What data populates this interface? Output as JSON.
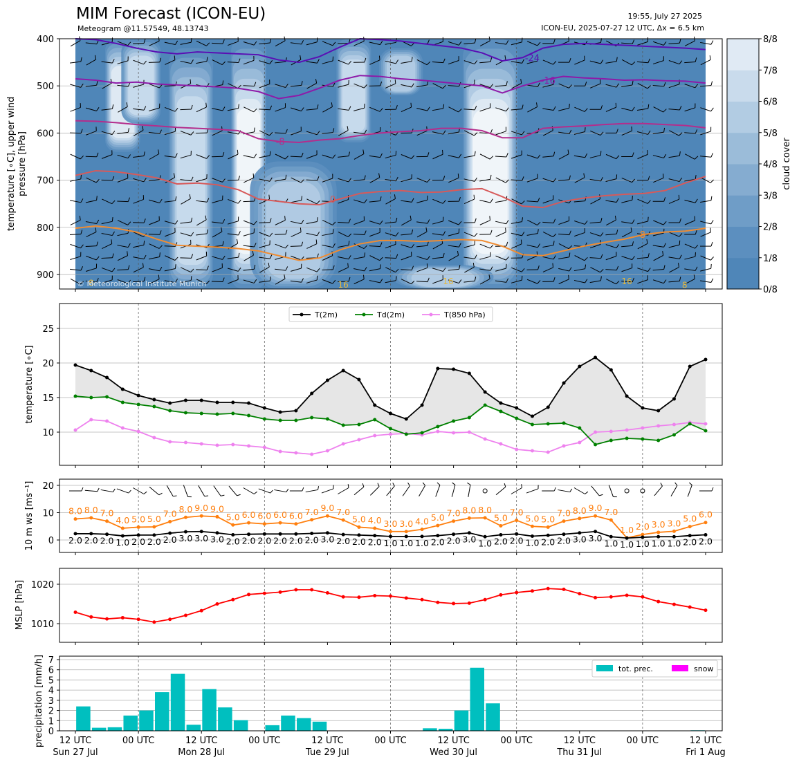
{
  "header": {
    "title": "MIM Forecast (ICON-EU)",
    "subtitle": "Meteogram @11.57549, 48.13743",
    "time": "19:55, July 27 2025",
    "run": "ICON-EU, 2025-07-27 12 UTC, Δx = 6.5 km"
  },
  "colors": {
    "t2m": "#000000",
    "td2m": "#008000",
    "t850": "#ee82ee",
    "ws": "#ff7f0e",
    "mslp": "#ff0000",
    "prec": "#00bfbf",
    "snow": "#ff00ff",
    "cloud_low": "#4f86b8",
    "cloud_high": "#f2f6fa"
  },
  "time_axis": {
    "ticks": [
      {
        "h": 0,
        "top": "12 UTC",
        "bottom": "Sun 27 Jul"
      },
      {
        "h": 12,
        "top": "00 UTC",
        "bottom": ""
      },
      {
        "h": 24,
        "top": "12 UTC",
        "bottom": "Mon 28 Jul"
      },
      {
        "h": 36,
        "top": "00 UTC",
        "bottom": ""
      },
      {
        "h": 48,
        "top": "12 UTC",
        "bottom": "Tue 29 Jul"
      },
      {
        "h": 60,
        "top": "00 UTC",
        "bottom": ""
      },
      {
        "h": 72,
        "top": "12 UTC",
        "bottom": "Wed 30 Jul"
      },
      {
        "h": 84,
        "top": "00 UTC",
        "bottom": ""
      },
      {
        "h": 96,
        "top": "12 UTC",
        "bottom": "Thu 31 Jul"
      },
      {
        "h": 108,
        "top": "00 UTC",
        "bottom": ""
      },
      {
        "h": 120,
        "top": "12 UTC",
        "bottom": "Fri 1 Aug"
      }
    ]
  },
  "chart_data": [
    {
      "type": "heatmap",
      "ylabel": "temperature [∘C], upper wind\npressure [hPa]",
      "y_ticks": [
        400,
        500,
        600,
        700,
        800,
        900
      ],
      "colorbar_label": "cloud cover",
      "colorbar_ticks": [
        "0/8",
        "1/8",
        "2/8",
        "3/8",
        "4/8",
        "5/8",
        "6/8",
        "7/8",
        "8/8"
      ],
      "cloud_columns": [
        {
          "h_from": 6,
          "h_to": 12,
          "top": 400,
          "bottom": 640,
          "level": 7
        },
        {
          "h_from": 9,
          "h_to": 16,
          "top": 400,
          "bottom": 580,
          "level": 6
        },
        {
          "h_from": 18,
          "h_to": 26,
          "top": 420,
          "bottom": 935,
          "level": 6
        },
        {
          "h_from": 30,
          "h_to": 36,
          "top": 400,
          "bottom": 935,
          "level": 8
        },
        {
          "h_from": 33,
          "h_to": 50,
          "top": 660,
          "bottom": 935,
          "level": 5
        },
        {
          "h_from": 50,
          "h_to": 56,
          "top": 400,
          "bottom": 620,
          "level": 6
        },
        {
          "h_from": 58,
          "h_to": 66,
          "top": 420,
          "bottom": 520,
          "level": 5
        },
        {
          "h_from": 74,
          "h_to": 84,
          "top": 400,
          "bottom": 935,
          "level": 8
        },
        {
          "h_from": 60,
          "h_to": 80,
          "top": 880,
          "bottom": 935,
          "level": 5
        }
      ],
      "isotherms": [
        {
          "label": "-24",
          "color": "#5a0fb4",
          "label_h": 87,
          "values": [
            400,
            402,
            410,
            420,
            428,
            432,
            428,
            430,
            432,
            434,
            445,
            450,
            438,
            418,
            400,
            402,
            405,
            410,
            415,
            420,
            430,
            447,
            440,
            420,
            412,
            410,
            412,
            414,
            416,
            418,
            420,
            423
          ]
        },
        {
          "label": "-16",
          "color": "#8e1aa8",
          "label_h": 90,
          "values": [
            485,
            488,
            494,
            492,
            496,
            498,
            500,
            502,
            505,
            512,
            527,
            520,
            505,
            488,
            478,
            480,
            485,
            488,
            492,
            496,
            500,
            515,
            500,
            488,
            480,
            483,
            485,
            488,
            487,
            489,
            490,
            494
          ]
        },
        {
          "label": "-8",
          "color": "#b42d8c",
          "label_h": 39,
          "values": [
            574,
            575,
            578,
            582,
            585,
            588,
            590,
            592,
            595,
            612,
            618,
            620,
            615,
            612,
            605,
            600,
            597,
            595,
            590,
            590,
            595,
            610,
            610,
            590,
            587,
            585,
            582,
            580,
            580,
            582,
            584,
            589
          ]
        },
        {
          "label": "0",
          "color": "#d75a5a",
          "label_h": 49,
          "values": [
            690,
            680,
            682,
            688,
            695,
            708,
            706,
            710,
            720,
            740,
            745,
            750,
            752,
            740,
            728,
            724,
            722,
            726,
            725,
            720,
            718,
            735,
            755,
            758,
            745,
            738,
            733,
            730,
            728,
            722,
            706,
            692
          ]
        },
        {
          "label": "8",
          "color": "#f08c32",
          "label_h": 108,
          "values": [
            802,
            797,
            802,
            810,
            825,
            838,
            840,
            842,
            845,
            850,
            860,
            870,
            865,
            848,
            835,
            828,
            828,
            830,
            828,
            826,
            828,
            840,
            858,
            860,
            850,
            840,
            832,
            825,
            815,
            810,
            808,
            802
          ]
        }
      ],
      "contour_labels": [
        {
          "text": "8",
          "h": 3,
          "p": 918,
          "color": "#e8b93a"
        },
        {
          "text": "16",
          "h": 51,
          "p": 922,
          "color": "#e8b93a"
        },
        {
          "text": "16",
          "h": 71,
          "p": 915,
          "color": "#e8b93a"
        },
        {
          "text": "16",
          "h": 105,
          "p": 915,
          "color": "#e8b93a"
        },
        {
          "text": "8",
          "h": 116,
          "p": 923,
          "color": "#e8b93a"
        }
      ],
      "watermark": "© Meteorological Institute Munich"
    },
    {
      "type": "line",
      "ylabel": "temperature [∘C]",
      "ylim": [
        5,
        28.5
      ],
      "y_ticks": [
        10,
        15,
        20,
        25
      ],
      "hours": [
        0,
        3,
        6,
        9,
        12,
        15,
        18,
        21,
        24,
        27,
        30,
        33,
        36,
        39,
        42,
        45,
        48,
        51,
        54,
        57,
        60,
        63,
        66,
        69,
        72,
        75,
        78,
        81,
        84,
        87,
        90,
        93,
        96,
        99,
        102,
        105,
        108,
        111,
        114,
        117,
        120
      ],
      "series": [
        {
          "name": "T(2m)",
          "color": "#000000",
          "values": [
            19.7,
            18.9,
            17.9,
            16.2,
            15.3,
            14.7,
            14.2,
            14.6,
            14.6,
            14.3,
            14.3,
            14.2,
            13.5,
            12.9,
            13.1,
            15.6,
            17.5,
            18.9,
            17.6,
            13.9,
            12.7,
            11.9,
            13.9,
            19.2,
            19.1,
            18.5,
            15.8,
            14.2,
            13.5,
            12.3,
            13.6,
            17.1,
            19.5,
            20.8,
            19.0,
            15.2,
            13.5,
            13.1,
            14.8,
            19.5,
            20.5
          ]
        },
        {
          "name": "Td(2m)",
          "color": "#008000",
          "values": [
            15.2,
            15.0,
            15.1,
            14.3,
            14.0,
            13.7,
            13.1,
            12.8,
            12.7,
            12.6,
            12.7,
            12.4,
            11.9,
            11.7,
            11.7,
            12.1,
            11.9,
            11.0,
            11.1,
            11.8,
            10.5,
            9.7,
            9.9,
            10.8,
            11.6,
            12.1,
            13.9,
            13.0,
            12.0,
            11.1,
            11.2,
            11.3,
            10.6,
            8.2,
            8.8,
            9.1,
            9.0,
            8.8,
            9.6,
            11.2,
            10.2
          ]
        },
        {
          "name": "T(850 hPa)",
          "color": "#ee82ee",
          "values": [
            10.3,
            11.8,
            11.6,
            10.6,
            10.1,
            9.2,
            8.6,
            8.5,
            8.3,
            8.1,
            8.2,
            8.0,
            7.8,
            7.2,
            7.0,
            6.8,
            7.3,
            8.3,
            8.9,
            9.5,
            9.7,
            9.8,
            9.6,
            10.1,
            9.9,
            10.0,
            9.0,
            8.3,
            7.5,
            7.3,
            7.1,
            8.0,
            8.5,
            10.0,
            10.1,
            10.3,
            10.6,
            10.9,
            11.1,
            11.4,
            11.2
          ]
        }
      ]
    },
    {
      "type": "line",
      "ylabel": "10 m ws [ms⁻¹]",
      "ylim": [
        -3,
        22
      ],
      "y_ticks": [
        0,
        10,
        20
      ],
      "series": [
        {
          "name": "gust",
          "color": "#ff7f0e",
          "values": [
            7.7,
            8.1,
            6.9,
            4.3,
            4.7,
            4.8,
            6.7,
            8.3,
            8.8,
            8.5,
            5.5,
            6.3,
            5.9,
            6.3,
            5.9,
            7.4,
            8.8,
            7.3,
            4.7,
            4.3,
            3.1,
            3.1,
            3.9,
            5.3,
            6.9,
            8.0,
            8.1,
            5.2,
            7.2,
            5.0,
            4.7,
            6.9,
            7.9,
            8.8,
            7.3,
            0.8,
            2.0,
            2.8,
            3.2,
            4.9,
            6.4
          ],
          "labels": [
            "8.0",
            "8.0",
            "7.0",
            "4.0",
            "5.0",
            "5.0",
            "7.0",
            "8.0",
            "9.0",
            "9.0",
            "5.0",
            "6.0",
            "6.0",
            "6.0",
            "6.0",
            "7.0",
            "9.0",
            "7.0",
            "5.0",
            "4.0",
            "3.0",
            "3.0",
            "4.0",
            "5.0",
            "7.0",
            "8.0",
            "8.0",
            "5.0",
            "7.0",
            "5.0",
            "5.0",
            "7.0",
            "8.0",
            "9.0",
            "7.0",
            "1.0",
            "2.0",
            "3.0",
            "3.0",
            "5.0",
            "6.0"
          ]
        },
        {
          "name": "mean",
          "color": "#000000",
          "values": [
            2.3,
            2.3,
            2.1,
            1.5,
            1.8,
            1.8,
            2.5,
            3.0,
            3.1,
            2.6,
            1.9,
            2.1,
            2.2,
            2.2,
            2.2,
            2.4,
            2.6,
            2.0,
            1.8,
            1.6,
            1.3,
            1.3,
            1.3,
            1.6,
            2.1,
            2.6,
            1.2,
            1.9,
            2.2,
            1.4,
            1.7,
            2.1,
            2.6,
            3.1,
            1.2,
            0.7,
            1.0,
            1.2,
            1.2,
            1.6,
            1.9
          ],
          "labels": [
            "2.0",
            "2.0",
            "2.0",
            "1.0",
            "2.0",
            "2.0",
            "2.0",
            "3.0",
            "3.0",
            "3.0",
            "2.0",
            "2.0",
            "2.0",
            "2.0",
            "2.0",
            "2.0",
            "3.0",
            "2.0",
            "2.0",
            "2.0",
            "1.0",
            "1.0",
            "1.0",
            "2.0",
            "2.0",
            "3.0",
            "1.0",
            "2.0",
            "2.0",
            "1.0",
            "2.0",
            "2.0",
            "3.0",
            "3.0",
            "1.0",
            "1.0",
            "1.0",
            "1.0",
            "1.0",
            "2.0",
            "2.0"
          ]
        }
      ],
      "barb_dirs": [
        270,
        275,
        280,
        290,
        300,
        310,
        330,
        340,
        330,
        325,
        320,
        300,
        290,
        280,
        270,
        260,
        250,
        240,
        230,
        225,
        220,
        215,
        210,
        200,
        195,
        190,
        -1,
        230,
        240,
        250,
        270,
        280,
        300,
        320,
        340,
        -1,
        -1,
        220,
        210,
        200,
        270
      ]
    },
    {
      "type": "line",
      "ylabel": "MSLP [hPa]",
      "ylim": [
        1005,
        1024
      ],
      "y_ticks": [
        1010,
        1020
      ],
      "series": [
        {
          "name": "MSLP",
          "color": "#ff0000",
          "values": [
            1012.9,
            1011.7,
            1011.2,
            1011.5,
            1011.1,
            1010.4,
            1011.1,
            1012.1,
            1013.3,
            1015.0,
            1016.1,
            1017.4,
            1017.7,
            1018.0,
            1018.6,
            1018.6,
            1017.8,
            1016.8,
            1016.7,
            1017.1,
            1017.0,
            1016.5,
            1016.1,
            1015.4,
            1015.1,
            1015.2,
            1016.1,
            1017.3,
            1017.9,
            1018.3,
            1018.9,
            1018.7,
            1017.6,
            1016.6,
            1016.8,
            1017.2,
            1016.8,
            1015.6,
            1014.9,
            1014.2,
            1013.4
          ]
        }
      ]
    },
    {
      "type": "bar",
      "ylabel": "precipitation [mm/h]",
      "ylim": [
        0,
        7.3
      ],
      "y_ticks": [
        0,
        1,
        2,
        3,
        4,
        5,
        6,
        7
      ],
      "bar_hours": [
        1.5,
        4.5,
        7.5,
        10.5,
        13.5,
        16.5,
        19.5,
        22.5,
        25.5,
        28.5,
        31.5,
        34.5,
        37.5,
        40.5,
        43.5,
        46.5,
        49.5,
        52.5,
        55.5,
        58.5,
        61.5,
        64.5,
        67.5,
        70.5,
        73.5,
        76.5,
        79.5,
        82.5,
        85.5,
        88.5,
        91.5,
        94.5,
        97.5,
        100.5,
        103.5,
        106.5,
        109.5,
        112.5,
        115.5,
        118.5
      ],
      "series": [
        {
          "name": "tot. prec.",
          "color": "#00bfbf",
          "values": [
            2.4,
            0.3,
            0.35,
            1.5,
            2.0,
            3.8,
            5.6,
            0.6,
            4.1,
            2.3,
            1.05,
            0,
            0.55,
            1.5,
            1.25,
            0.9,
            0.03,
            0.03,
            0,
            0,
            0,
            0,
            0.25,
            0.2,
            2.0,
            6.2,
            2.7,
            0.03,
            0,
            0,
            0,
            0,
            0,
            0,
            0,
            0,
            0,
            0,
            0,
            0.05
          ]
        },
        {
          "name": "snow",
          "color": "#ff00ff",
          "values": [
            0,
            0,
            0,
            0,
            0,
            0,
            0,
            0,
            0,
            0,
            0,
            0,
            0,
            0,
            0,
            0,
            0,
            0,
            0,
            0,
            0,
            0,
            0,
            0,
            0,
            0,
            0,
            0,
            0,
            0,
            0,
            0,
            0,
            0,
            0,
            0,
            0,
            0,
            0,
            0
          ]
        }
      ]
    }
  ]
}
